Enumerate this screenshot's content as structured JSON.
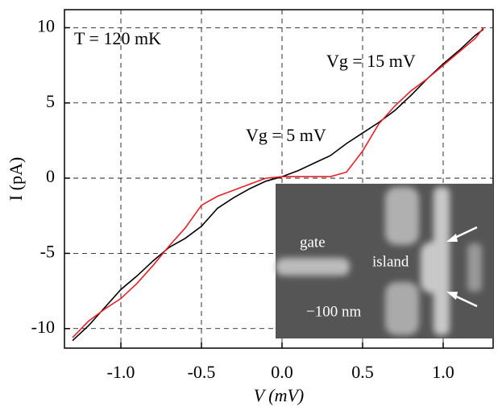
{
  "chart_data": {
    "type": "line",
    "x_label": "V (mV)",
    "y_label": "I (pA)",
    "annotations": [
      "T = 120 mK"
    ],
    "inset_labels": [
      "gate",
      "island",
      "−100 nm"
    ],
    "x": [
      -1.3,
      -1.2,
      -1.1,
      -1.0,
      -0.9,
      -0.8,
      -0.7,
      -0.6,
      -0.5,
      -0.4,
      -0.3,
      -0.2,
      -0.1,
      0,
      0.1,
      0.2,
      0.3,
      0.4,
      0.5,
      0.6,
      0.7,
      0.8,
      0.9,
      1.0,
      1.1,
      1.2,
      1.25
    ],
    "series": [
      {
        "name": "Vg = 5 mV",
        "color": "#000000",
        "values": [
          -10.8,
          -9.8,
          -8.6,
          -7.4,
          -6.5,
          -5.5,
          -4.6,
          -4.0,
          -3.2,
          -2.0,
          -1.3,
          -0.7,
          -0.2,
          0.1,
          0.5,
          1.0,
          1.5,
          2.3,
          3.0,
          3.7,
          4.5,
          5.5,
          6.6,
          7.6,
          8.5,
          9.5,
          9.9
        ]
      },
      {
        "name": "Vg = 15 mV",
        "color": "#e8202a",
        "values": [
          -10.6,
          -9.5,
          -8.7,
          -8.0,
          -7.0,
          -5.8,
          -4.5,
          -3.3,
          -1.8,
          -1.2,
          -0.8,
          -0.4,
          0.0,
          0.1,
          0.1,
          0.1,
          0.1,
          0.4,
          1.8,
          3.6,
          4.8,
          5.8,
          6.6,
          7.5,
          8.4,
          9.3,
          10.0
        ]
      }
    ],
    "xlim": [
      -1.35,
      1.31
    ],
    "ylim": [
      -11.3,
      11.2
    ],
    "xticks": [
      {
        "value": -1,
        "label": "-1.0"
      },
      -0.5,
      {
        "value": 0,
        "label": "0.0"
      },
      0.5,
      {
        "value": 1,
        "label": "1.0"
      }
    ],
    "yticks": [
      -10,
      -5,
      0,
      5,
      10
    ],
    "grid": true
  }
}
